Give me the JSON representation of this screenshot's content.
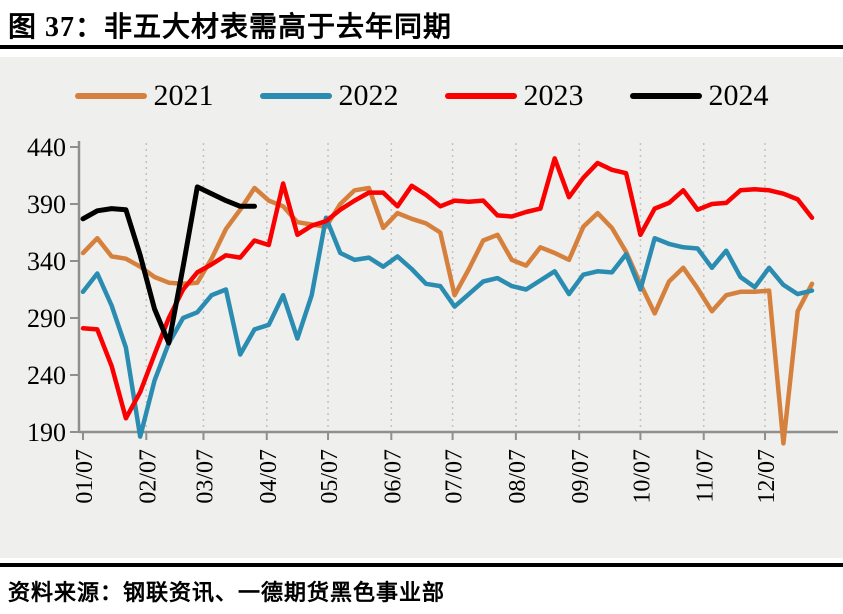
{
  "header": {
    "title": "图 37：非五大材表需高于去年同期"
  },
  "footer": {
    "source": "资料来源：钢联资讯、一德期货黑色事业部"
  },
  "chart_data": {
    "type": "line",
    "title": "非五大材表需高于去年同期",
    "legend_position": "top",
    "grid": "monthly vertical dotted gridlines, light gray plot background",
    "x_axis": {
      "tick_labels": [
        "01/07",
        "02/07",
        "03/07",
        "04/07",
        "05/07",
        "06/07",
        "07/07",
        "08/07",
        "09/07",
        "10/07",
        "11/07",
        "12/07"
      ],
      "note": "weekly observations starting Jan 7, labels rotated 90°"
    },
    "y_axis": {
      "ticks": [
        190,
        240,
        290,
        340,
        390,
        440
      ],
      "range": [
        190,
        440
      ]
    },
    "series": [
      {
        "name": "2021",
        "color": "#d6803e",
        "cadence_days": 7,
        "values": [
          347,
          360,
          344,
          342,
          335,
          326,
          321,
          320,
          321,
          342,
          368,
          385,
          404,
          393,
          388,
          374,
          372,
          370,
          390,
          402,
          404,
          369,
          382,
          377,
          373,
          365,
          310,
          333,
          358,
          363,
          341,
          336,
          352,
          347,
          341,
          370,
          382,
          369,
          348,
          320,
          294,
          322,
          334,
          316,
          296,
          310,
          313,
          313,
          314,
          180,
          296,
          320
        ]
      },
      {
        "name": "2022",
        "color": "#2b8cb1",
        "cadence_days": 7,
        "values": [
          313,
          329,
          301,
          264,
          186,
          235,
          268,
          290,
          295,
          310,
          315,
          258,
          280,
          284,
          310,
          272,
          310,
          378,
          347,
          341,
          343,
          335,
          344,
          333,
          320,
          318,
          300,
          311,
          322,
          325,
          318,
          315,
          323,
          331,
          311,
          328,
          331,
          330,
          346,
          315,
          360,
          355,
          352,
          351,
          334,
          349,
          326,
          317,
          334,
          319,
          311,
          314
        ]
      },
      {
        "name": "2023",
        "color": "#fa0000",
        "cadence_days": 7,
        "values": [
          281,
          280,
          248,
          202,
          225,
          258,
          290,
          315,
          330,
          337,
          345,
          343,
          358,
          354,
          408,
          363,
          371,
          375,
          385,
          393,
          400,
          400,
          388,
          406,
          398,
          388,
          393,
          392,
          393,
          380,
          379,
          383,
          386,
          430,
          396,
          413,
          426,
          420,
          417,
          363,
          386,
          391,
          402,
          385,
          390,
          391,
          402,
          403,
          402,
          399,
          394,
          378
        ]
      },
      {
        "name": "2024",
        "color": "#000000",
        "cadence_days": 7,
        "values": [
          377,
          384,
          386,
          385,
          345,
          298,
          268,
          335,
          405,
          399,
          393,
          388,
          388
        ]
      }
    ]
  }
}
